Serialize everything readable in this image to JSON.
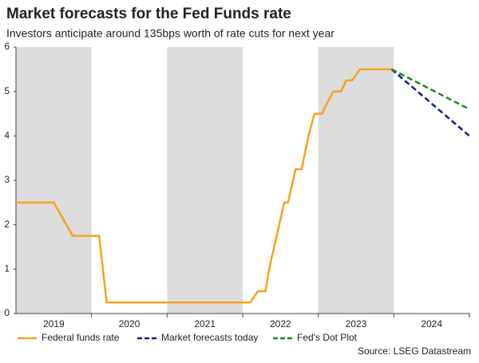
{
  "chart_data": {
    "type": "line",
    "title": "Market forecasts for the Fed Funds rate",
    "subtitle": "Investors anticipate around 135bps worth of rate cuts for next year",
    "source": "Source: LSEG Datastream",
    "categories": [
      "2019",
      "2020",
      "2021",
      "2022",
      "2023",
      "2024"
    ],
    "shaded": [
      true,
      false,
      true,
      false,
      true,
      false
    ],
    "band_color": "#dcdcdc",
    "xlim": [
      2019,
      2025
    ],
    "ylim": [
      0,
      6
    ],
    "yticks": [
      0,
      1,
      2,
      3,
      4,
      5,
      6
    ],
    "series": [
      {
        "name": "Federal funds rate",
        "color": "#f7a21b",
        "dashed": false,
        "x": [
          2019.0,
          2019.5,
          2019.75,
          2020.1,
          2020.2,
          2022.1,
          2022.2,
          2022.3,
          2022.35,
          2022.45,
          2022.55,
          2022.6,
          2022.7,
          2022.78,
          2022.87,
          2022.95,
          2023.05,
          2023.12,
          2023.2,
          2023.3,
          2023.37,
          2023.45,
          2023.55,
          2023.97
        ],
        "values": [
          2.5,
          2.5,
          1.75,
          1.75,
          0.25,
          0.25,
          0.5,
          0.5,
          1.0,
          1.75,
          2.5,
          2.5,
          3.25,
          3.25,
          4.0,
          4.5,
          4.5,
          4.75,
          5.0,
          5.0,
          5.25,
          5.25,
          5.5,
          5.5
        ]
      },
      {
        "name": "Market forecasts today",
        "color": "#1a1a7a",
        "dashed": true,
        "x": [
          2023.97,
          2025.0
        ],
        "values": [
          5.5,
          4.0
        ]
      },
      {
        "name": "Fed's Dot Plot",
        "color": "#1a8a1a",
        "dashed": true,
        "x": [
          2023.97,
          2025.0
        ],
        "values": [
          5.5,
          4.6
        ]
      }
    ]
  }
}
